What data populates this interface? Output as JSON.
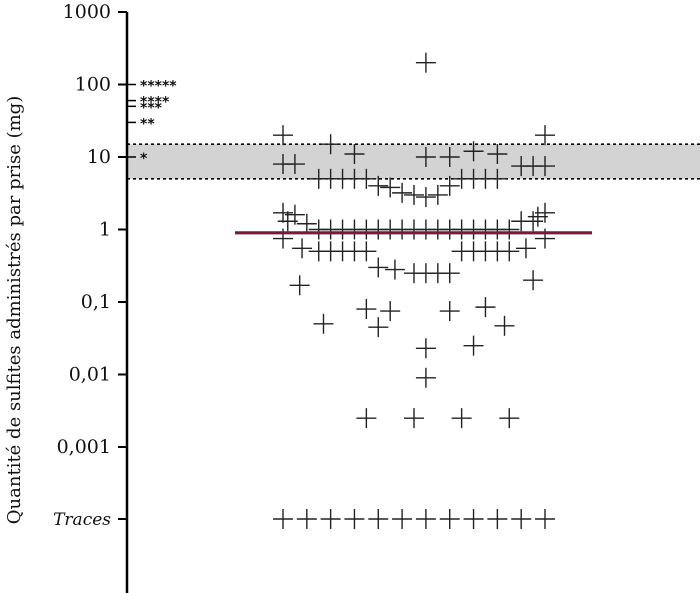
{
  "chart_data": {
    "type": "scatter",
    "title": "",
    "xlabel": "",
    "ylabel": "Quantité de sulfites administrés par prise (mg)",
    "y_scale": "log",
    "ylim": [
      0.0002,
      1000
    ],
    "y_ticks": [
      {
        "value": 1000,
        "label": "1000"
      },
      {
        "value": 100,
        "label": "100"
      },
      {
        "value": 10,
        "label": "10"
      },
      {
        "value": 1,
        "label": "1"
      },
      {
        "value": 0.1,
        "label": "0,1"
      },
      {
        "value": 0.01,
        "label": "0,01"
      },
      {
        "value": 0.001,
        "label": "0,001"
      },
      {
        "value": "traces",
        "label": "Traces"
      }
    ],
    "band": {
      "y_min": 5,
      "y_max": 15,
      "color": "#d3d3d3"
    },
    "median": {
      "value": 0.9,
      "color": "#7a1a3a"
    },
    "significance_marks": [
      {
        "value": 100,
        "label": "*****"
      },
      {
        "value": 60,
        "label": "****"
      },
      {
        "value": 50,
        "label": "***"
      },
      {
        "value": 30,
        "label": "**"
      },
      {
        "value": 10,
        "label": "*"
      }
    ],
    "series": [
      {
        "points": [
          {
            "x": 13,
            "y": 200
          },
          {
            "x": 7,
            "y": 20
          },
          {
            "x": 18,
            "y": 20
          },
          {
            "x": 9,
            "y": 15
          },
          {
            "x": 15,
            "y": 12
          },
          {
            "x": 10,
            "y": 11
          },
          {
            "x": 13,
            "y": 10
          },
          {
            "x": 14,
            "y": 10
          },
          {
            "x": 16,
            "y": 11
          },
          {
            "x": 7,
            "y": 8
          },
          {
            "x": 7.5,
            "y": 8
          },
          {
            "x": 17,
            "y": 7.5
          },
          {
            "x": 17.5,
            "y": 7.5
          },
          {
            "x": 18,
            "y": 7.5
          },
          {
            "x": 8.5,
            "y": 5
          },
          {
            "x": 9,
            "y": 5
          },
          {
            "x": 9.5,
            "y": 5
          },
          {
            "x": 10,
            "y": 5
          },
          {
            "x": 10.5,
            "y": 5
          },
          {
            "x": 14.5,
            "y": 5
          },
          {
            "x": 15,
            "y": 5
          },
          {
            "x": 15.5,
            "y": 5
          },
          {
            "x": 16,
            "y": 5
          },
          {
            "x": 11,
            "y": 4
          },
          {
            "x": 11.5,
            "y": 3.8
          },
          {
            "x": 14,
            "y": 4
          },
          {
            "x": 12,
            "y": 3.2
          },
          {
            "x": 12.5,
            "y": 3
          },
          {
            "x": 13,
            "y": 2.8
          },
          {
            "x": 13.5,
            "y": 3
          },
          {
            "x": 7,
            "y": 1.7
          },
          {
            "x": 7.5,
            "y": 1.6
          },
          {
            "x": 18,
            "y": 1.7
          },
          {
            "x": 17.7,
            "y": 1.5
          },
          {
            "x": 7.2,
            "y": 1.3
          },
          {
            "x": 8,
            "y": 1.2
          },
          {
            "x": 17,
            "y": 1.3
          },
          {
            "x": 17.5,
            "y": 1.3
          },
          {
            "x": 8.5,
            "y": 1.0
          },
          {
            "x": 9,
            "y": 1.0
          },
          {
            "x": 9.5,
            "y": 1.0
          },
          {
            "x": 10,
            "y": 1.0
          },
          {
            "x": 10.5,
            "y": 1.0
          },
          {
            "x": 11,
            "y": 1.0
          },
          {
            "x": 11.5,
            "y": 1.0
          },
          {
            "x": 12,
            "y": 1.0
          },
          {
            "x": 12.5,
            "y": 1.0
          },
          {
            "x": 13,
            "y": 1.0
          },
          {
            "x": 13.5,
            "y": 1.0
          },
          {
            "x": 14,
            "y": 1.0
          },
          {
            "x": 14.5,
            "y": 1.0
          },
          {
            "x": 15,
            "y": 1.0
          },
          {
            "x": 15.5,
            "y": 1.0
          },
          {
            "x": 16,
            "y": 1.0
          },
          {
            "x": 16.5,
            "y": 1.0
          },
          {
            "x": 7,
            "y": 0.75
          },
          {
            "x": 18,
            "y": 0.75
          },
          {
            "x": 7.8,
            "y": 0.55
          },
          {
            "x": 8.5,
            "y": 0.5
          },
          {
            "x": 9,
            "y": 0.5
          },
          {
            "x": 9.5,
            "y": 0.5
          },
          {
            "x": 10,
            "y": 0.5
          },
          {
            "x": 10.5,
            "y": 0.5
          },
          {
            "x": 14.5,
            "y": 0.5
          },
          {
            "x": 15,
            "y": 0.5
          },
          {
            "x": 15.5,
            "y": 0.5
          },
          {
            "x": 16,
            "y": 0.5
          },
          {
            "x": 16.5,
            "y": 0.5
          },
          {
            "x": 17.2,
            "y": 0.55
          },
          {
            "x": 11,
            "y": 0.3
          },
          {
            "x": 11.7,
            "y": 0.28
          },
          {
            "x": 12.5,
            "y": 0.25
          },
          {
            "x": 13,
            "y": 0.25
          },
          {
            "x": 13.5,
            "y": 0.25
          },
          {
            "x": 14,
            "y": 0.25
          },
          {
            "x": 17.5,
            "y": 0.2
          },
          {
            "x": 7.7,
            "y": 0.17
          },
          {
            "x": 10.5,
            "y": 0.08
          },
          {
            "x": 11.5,
            "y": 0.075
          },
          {
            "x": 14,
            "y": 0.075
          },
          {
            "x": 15.5,
            "y": 0.085
          },
          {
            "x": 8.7,
            "y": 0.05
          },
          {
            "x": 11,
            "y": 0.045
          },
          {
            "x": 16.3,
            "y": 0.047
          },
          {
            "x": 13,
            "y": 0.023
          },
          {
            "x": 15,
            "y": 0.025
          },
          {
            "x": 13,
            "y": 0.009
          },
          {
            "x": 10.5,
            "y": 0.0025
          },
          {
            "x": 12.5,
            "y": 0.0025
          },
          {
            "x": 14.5,
            "y": 0.0025
          },
          {
            "x": 16.5,
            "y": 0.0025
          },
          {
            "x": 7,
            "y": "traces"
          },
          {
            "x": 8,
            "y": "traces"
          },
          {
            "x": 9,
            "y": "traces"
          },
          {
            "x": 10,
            "y": "traces"
          },
          {
            "x": 11,
            "y": "traces"
          },
          {
            "x": 12,
            "y": "traces"
          },
          {
            "x": 13,
            "y": "traces"
          },
          {
            "x": 14,
            "y": "traces"
          },
          {
            "x": 15,
            "y": "traces"
          },
          {
            "x": 16,
            "y": "traces"
          },
          {
            "x": 17,
            "y": "traces"
          },
          {
            "x": 18,
            "y": "traces"
          }
        ]
      }
    ]
  }
}
